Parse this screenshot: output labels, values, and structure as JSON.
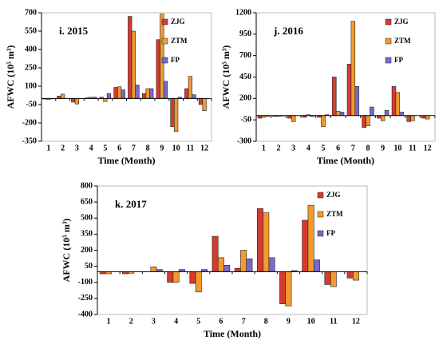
{
  "chart_data": [
    {
      "type": "bar",
      "title": "i. 2015",
      "xlabel": "Time (Month)",
      "ylabel": "AFWC (10⁵ m³)",
      "categories": [
        1,
        2,
        3,
        4,
        5,
        6,
        7,
        8,
        9,
        10,
        11,
        12
      ],
      "series": [
        {
          "name": "ZJG",
          "color": "#d63a2f",
          "values": [
            -5,
            20,
            -30,
            5,
            10,
            90,
            670,
            40,
            480,
            -230,
            80,
            -50
          ]
        },
        {
          "name": "ZTM",
          "color": "#f39a2e",
          "values": [
            -8,
            35,
            -45,
            10,
            -25,
            95,
            550,
            80,
            690,
            -270,
            180,
            -100
          ]
        },
        {
          "name": "FP",
          "color": "#7b68c8",
          "values": [
            -3,
            0,
            0,
            10,
            40,
            70,
            110,
            80,
            140,
            10,
            30,
            0
          ]
        }
      ],
      "ylim": [
        -350,
        700
      ],
      "yticks": [
        -350,
        -200,
        -50,
        100,
        250,
        400,
        550,
        700
      ],
      "legend": "upper right"
    },
    {
      "type": "bar",
      "title": "j. 2016",
      "xlabel": "Time (Month)",
      "ylabel": "AFWC (10⁵ m³)",
      "categories": [
        1,
        2,
        3,
        4,
        5,
        6,
        7,
        8,
        9,
        10,
        11,
        12
      ],
      "series": [
        {
          "name": "ZJG",
          "color": "#d63a2f",
          "values": [
            -30,
            -10,
            -30,
            -20,
            -20,
            450,
            600,
            -140,
            -30,
            340,
            -70,
            -30
          ]
        },
        {
          "name": "ZTM",
          "color": "#f39a2e",
          "values": [
            -20,
            -10,
            -70,
            10,
            -130,
            50,
            1100,
            -120,
            -60,
            270,
            -60,
            -40
          ]
        },
        {
          "name": "FP",
          "color": "#7b68c8",
          "values": [
            -10,
            -5,
            0,
            -10,
            10,
            40,
            340,
            100,
            60,
            40,
            0,
            0
          ]
        }
      ],
      "ylim": [
        -300,
        1200
      ],
      "yticks": [
        -300,
        -50,
        200,
        450,
        700,
        950,
        1200
      ],
      "legend": "upper right"
    },
    {
      "type": "bar",
      "title": "k. 2017",
      "xlabel": "Time (Month)",
      "ylabel": "AFWC (10⁵ m³)",
      "categories": [
        1,
        2,
        3,
        4,
        5,
        6,
        7,
        8,
        9,
        10,
        11,
        12
      ],
      "series": [
        {
          "name": "ZJG",
          "color": "#d63a2f",
          "values": [
            -20,
            -20,
            0,
            -100,
            -110,
            330,
            30,
            590,
            -300,
            480,
            -120,
            -60
          ]
        },
        {
          "name": "ZTM",
          "color": "#f39a2e",
          "values": [
            -20,
            -15,
            45,
            -100,
            -190,
            130,
            200,
            550,
            -320,
            620,
            -140,
            -80
          ]
        },
        {
          "name": "FP",
          "color": "#7b68c8",
          "values": [
            0,
            0,
            20,
            20,
            20,
            60,
            120,
            130,
            10,
            110,
            0,
            0
          ]
        }
      ],
      "ylim": [
        -400,
        800
      ],
      "yticks": [
        -400,
        -250,
        -100,
        50,
        200,
        350,
        500,
        650,
        800
      ],
      "legend": "upper right"
    }
  ]
}
